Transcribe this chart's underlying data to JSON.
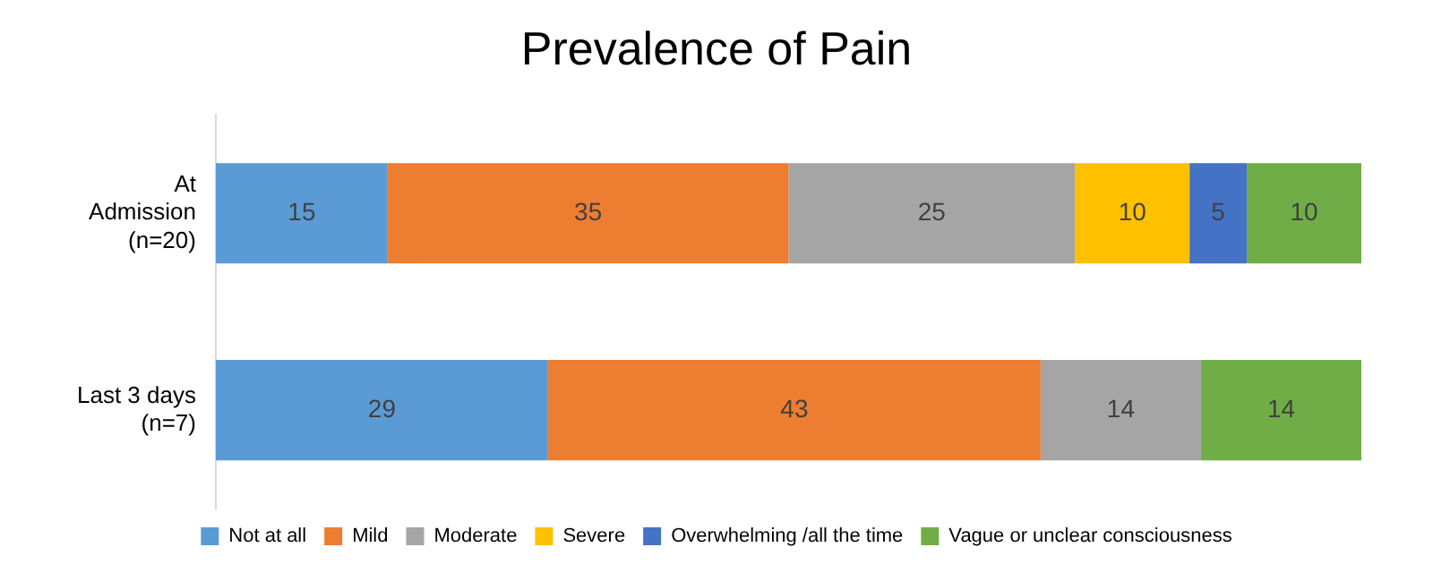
{
  "chart_data": {
    "type": "bar",
    "title": "Prevalence of Pain",
    "orientation": "horizontal",
    "stacked": true,
    "data_labels": true,
    "legend": "bottom",
    "categories": [
      "At\nAdmission\n(n=20)",
      "Last 3 days\n(n=7)"
    ],
    "series": [
      {
        "name": "Not at all",
        "color": "#5b9bd5",
        "values": [
          15,
          29
        ]
      },
      {
        "name": "Mild",
        "color": "#ed7d31",
        "values": [
          35,
          43
        ]
      },
      {
        "name": "Moderate",
        "color": "#a5a5a5",
        "values": [
          25,
          14
        ]
      },
      {
        "name": "Severe",
        "color": "#ffc000",
        "values": [
          10,
          null
        ]
      },
      {
        "name": "Overwhelming /all the time",
        "color": "#4472c4",
        "values": [
          5,
          null
        ]
      },
      {
        "name": "Vague or unclear consciousness",
        "color": "#70ad47",
        "values": [
          10,
          14
        ]
      }
    ]
  }
}
